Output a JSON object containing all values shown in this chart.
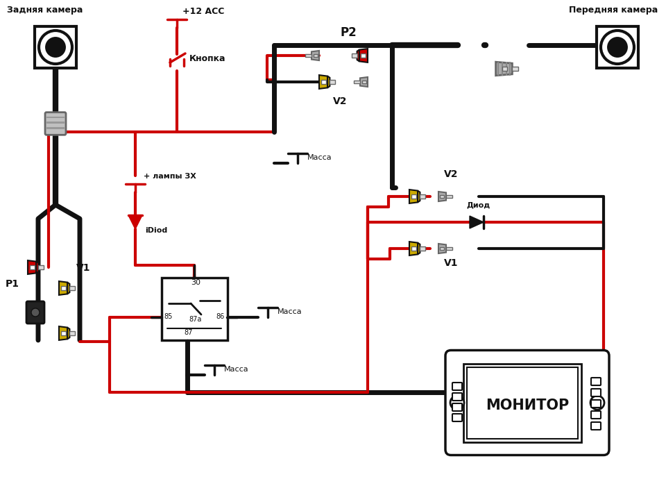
{
  "bg": "#ffffff",
  "red": "#cc0000",
  "yellow": "#ccaa00",
  "black": "#111111",
  "gray": "#aaaaaa",
  "dgray": "#666666",
  "lgray": "#dddddd",
  "labels": {
    "rear_cam": "Задняя камера",
    "front_cam": "Передняя камера",
    "acc": "+12 ACC",
    "button": "Кнопка",
    "lamp_plus": "+ лампы ЗХ",
    "idiod": "iDiod",
    "massa1": "Масса",
    "massa2": "Масса",
    "massa3": "Масса",
    "diod": "Диод",
    "monitor": "МОНИТОР",
    "P1": "P1",
    "P2": "P2",
    "V1": "V1",
    "V1b": "V1",
    "V2": "V2",
    "V2b": "V2",
    "r30": "30",
    "r85": "85",
    "r86": "86",
    "r87a": "87a",
    "r87": "87"
  }
}
